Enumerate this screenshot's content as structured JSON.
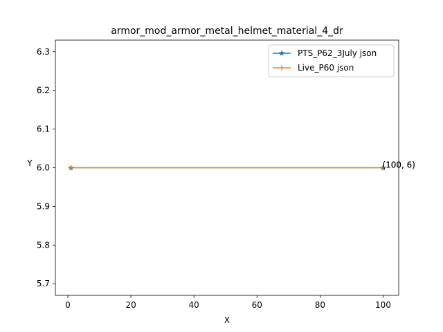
{
  "chart_data": {
    "type": "line",
    "title": "armor_mod_armor_metal_helmet_material_4_dr",
    "xlabel": "X",
    "ylabel": "Y",
    "xlim": [
      -3.95,
      104.95
    ],
    "ylim": [
      5.67,
      6.33
    ],
    "xticks": [
      0,
      20,
      40,
      60,
      80,
      100
    ],
    "yticks": [
      5.7,
      5.8,
      5.9,
      6.0,
      6.1,
      6.2,
      6.3
    ],
    "ytick_labels": [
      "5.7",
      "5.8",
      "5.9",
      "6.0",
      "6.1",
      "6.2",
      "6.3"
    ],
    "grid": false,
    "legend_position": "top-right",
    "series": [
      {
        "name": "PTS_P62_3July json",
        "color": "#1f77b4",
        "marker": "star",
        "x": [
          1,
          100
        ],
        "y": [
          6,
          6
        ]
      },
      {
        "name": "Live_P60 json",
        "color": "#ff7f0e",
        "marker": "plus",
        "x": [
          1,
          100
        ],
        "y": [
          6,
          6
        ]
      }
    ],
    "annotations": [
      {
        "text": "(100, 6)",
        "x": 100,
        "y": 6
      },
      {
        "text": "(100, 6)",
        "x": 100,
        "y": 6
      }
    ]
  }
}
